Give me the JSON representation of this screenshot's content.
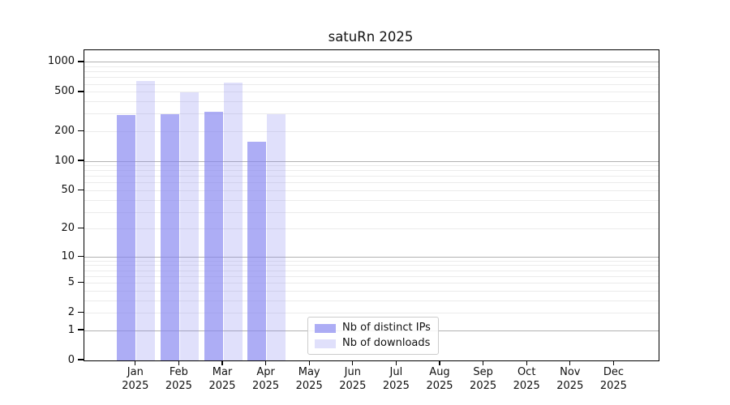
{
  "title": "satuRn 2025",
  "legend": {
    "items": [
      {
        "label": "Nb of distinct IPs",
        "color": "rgba(130,130,240,0.66)"
      },
      {
        "label": "Nb of downloads",
        "color": "rgba(130,130,240,0.25)"
      }
    ]
  },
  "chart_data": {
    "type": "bar",
    "title": "satuRn 2025",
    "categories": [
      "Jan 2025",
      "Feb 2025",
      "Mar 2025",
      "Apr 2025",
      "May 2025",
      "Jun 2025",
      "Jul 2025",
      "Aug 2025",
      "Sep 2025",
      "Oct 2025",
      "Nov 2025",
      "Dec 2025"
    ],
    "series": [
      {
        "name": "Nb of distinct IPs",
        "color": "rgba(130,130,240,0.66)",
        "values": [
          295,
          298,
          318,
          158,
          null,
          null,
          null,
          null,
          null,
          null,
          null,
          null
        ]
      },
      {
        "name": "Nb of downloads",
        "color": "rgba(130,130,240,0.25)",
        "values": [
          650,
          500,
          630,
          300,
          null,
          null,
          null,
          null,
          null,
          null,
          null,
          null
        ]
      }
    ],
    "xlabel": "",
    "ylabel": "",
    "y_scale": "log10(1+y)",
    "y_ticks": [
      0,
      1,
      2,
      5,
      10,
      20,
      50,
      100,
      200,
      500,
      1000
    ],
    "ylim": [
      0,
      1324
    ],
    "grid": true,
    "legend_position": "lower center"
  }
}
